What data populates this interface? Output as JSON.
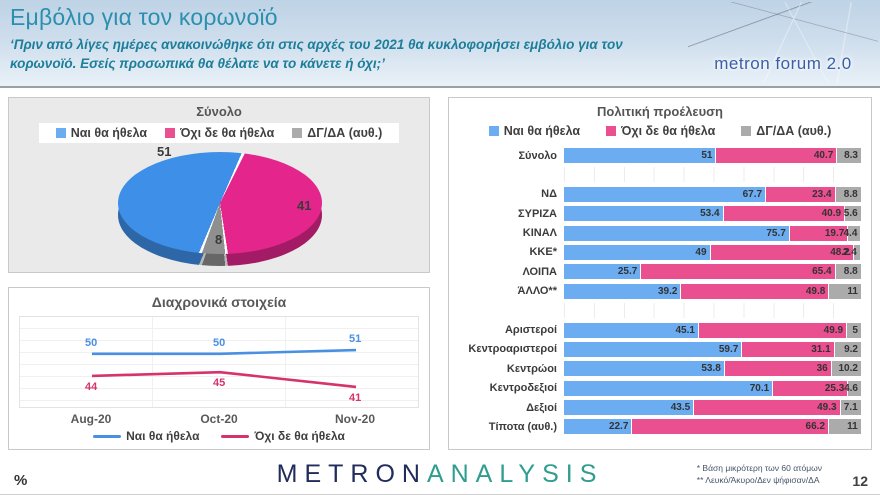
{
  "header": {
    "title": "Εμβόλιο για τον κορωνοϊό",
    "subtitle": "‘Πριν από λίγες ημέρες ανακοινώθηκε ότι στις αρχές του 2021 θα κυκλοφορήσει εμβόλιο για τον κορωνοϊό. Εσείς προσωπικά θα θέλατε να το κάνετε ή όχι;’",
    "logo_text": "metron forum 2.0"
  },
  "legend": {
    "yes": "Ναι θα ήθελα",
    "no": "Όχι δε θα ήθελα",
    "dk": "ΔΓ/ΔΑ (αυθ.)"
  },
  "colors": {
    "bar_yes": "#6CACF0",
    "bar_no": "#EA4F8F",
    "bar_dk": "#ABABAB",
    "pie_yes": "#3E8FE8",
    "pie_no": "#E3258C",
    "pie_dk": "#8F8F8F",
    "line_yes": "#4A90E2",
    "line_no": "#D6336C",
    "accent_teal": "#2B8FAE"
  },
  "chart_data": [
    {
      "type": "pie",
      "title": "Σύνολο",
      "labels": [
        "Ναι θα ήθελα",
        "Όχι δε θα ήθελα",
        "ΔΓ/ΔΑ (αυθ.)"
      ],
      "values": [
        51,
        41,
        8
      ],
      "colors": [
        "#3E8FE8",
        "#E3258C",
        "#8F8F8F"
      ],
      "legend_position": "top",
      "style": "3d"
    },
    {
      "type": "line",
      "title": "Διαχρονικά στοιχεία",
      "x": [
        "Aug-20",
        "Oct-20",
        "Nov-20"
      ],
      "series": [
        {
          "name": "Ναι θα ήθελα",
          "color": "#4A90E2",
          "values": [
            50,
            50,
            51
          ]
        },
        {
          "name": "Όχι δε θα ήθελα",
          "color": "#D6336C",
          "values": [
            44,
            45,
            41
          ]
        }
      ],
      "ylim": [
        35,
        60
      ],
      "grid": true,
      "legend_position": "bottom"
    },
    {
      "type": "bar",
      "stacked": true,
      "orientation": "horizontal",
      "title": "Πολιτική προέλευση",
      "series_names": [
        "Ναι θα ήθελα",
        "Όχι δε θα ήθελα",
        "ΔΓ/ΔΑ (αυθ.)"
      ],
      "series_colors": [
        "#6CACF0",
        "#EA4F8F",
        "#ABABAB"
      ],
      "categories": [
        "Σύνολο",
        "ΝΔ",
        "ΣΥΡΙΖΑ",
        "ΚΙΝΑΛ",
        "ΚΚΕ*",
        "ΛΟΙΠΑ",
        "ΆΛΛΟ**",
        "Αριστεροί",
        "Κεντροαριστεροί",
        "Κεντρώοι",
        "Κεντροδεξιοί",
        "Δεξιοί",
        "Τίποτα (αυθ.)"
      ],
      "rows": [
        {
          "label": "Σύνολο",
          "values": [
            51,
            40.7,
            8.3
          ]
        },
        {
          "label": "ΝΔ",
          "values": [
            67.7,
            23.4,
            8.8
          ]
        },
        {
          "label": "ΣΥΡΙΖΑ",
          "values": [
            53.4,
            40.9,
            5.6
          ]
        },
        {
          "label": "ΚΙΝΑΛ",
          "values": [
            75.7,
            19.7,
            4.4
          ]
        },
        {
          "label": "ΚΚΕ*",
          "values": [
            49,
            48.2,
            2.4
          ]
        },
        {
          "label": "ΛΟΙΠΑ",
          "values": [
            25.7,
            65.4,
            8.8
          ]
        },
        {
          "label": "ΆΛΛΟ**",
          "values": [
            39.2,
            49.8,
            11
          ]
        },
        {
          "label": "Αριστεροί",
          "values": [
            45.1,
            49.9,
            5
          ]
        },
        {
          "label": "Κεντροαριστεροί",
          "values": [
            59.7,
            31.1,
            9.2
          ]
        },
        {
          "label": "Κεντρώοι",
          "values": [
            53.8,
            36,
            10.2
          ]
        },
        {
          "label": "Κεντροδεξιοί",
          "values": [
            70.1,
            25.3,
            4.6
          ]
        },
        {
          "label": "Δεξιοί",
          "values": [
            43.5,
            49.3,
            7.1
          ]
        },
        {
          "label": "Τίποτα (αυθ.)",
          "values": [
            22.7,
            66.2,
            11
          ]
        }
      ],
      "gap_after_indices": [
        0,
        6
      ],
      "xlim": [
        0,
        100
      ],
      "grid": true
    }
  ],
  "footer": {
    "percent_label": "%",
    "brand_part1": "METRON",
    "brand_part2": "ANALYSIS",
    "footnote1": "* Βάση μικρότερη των 60 ατόμων",
    "footnote2": "** Λευκό/Άκυρο/Δεν ψήφισαν/ΔΑ",
    "page_number": "12"
  }
}
